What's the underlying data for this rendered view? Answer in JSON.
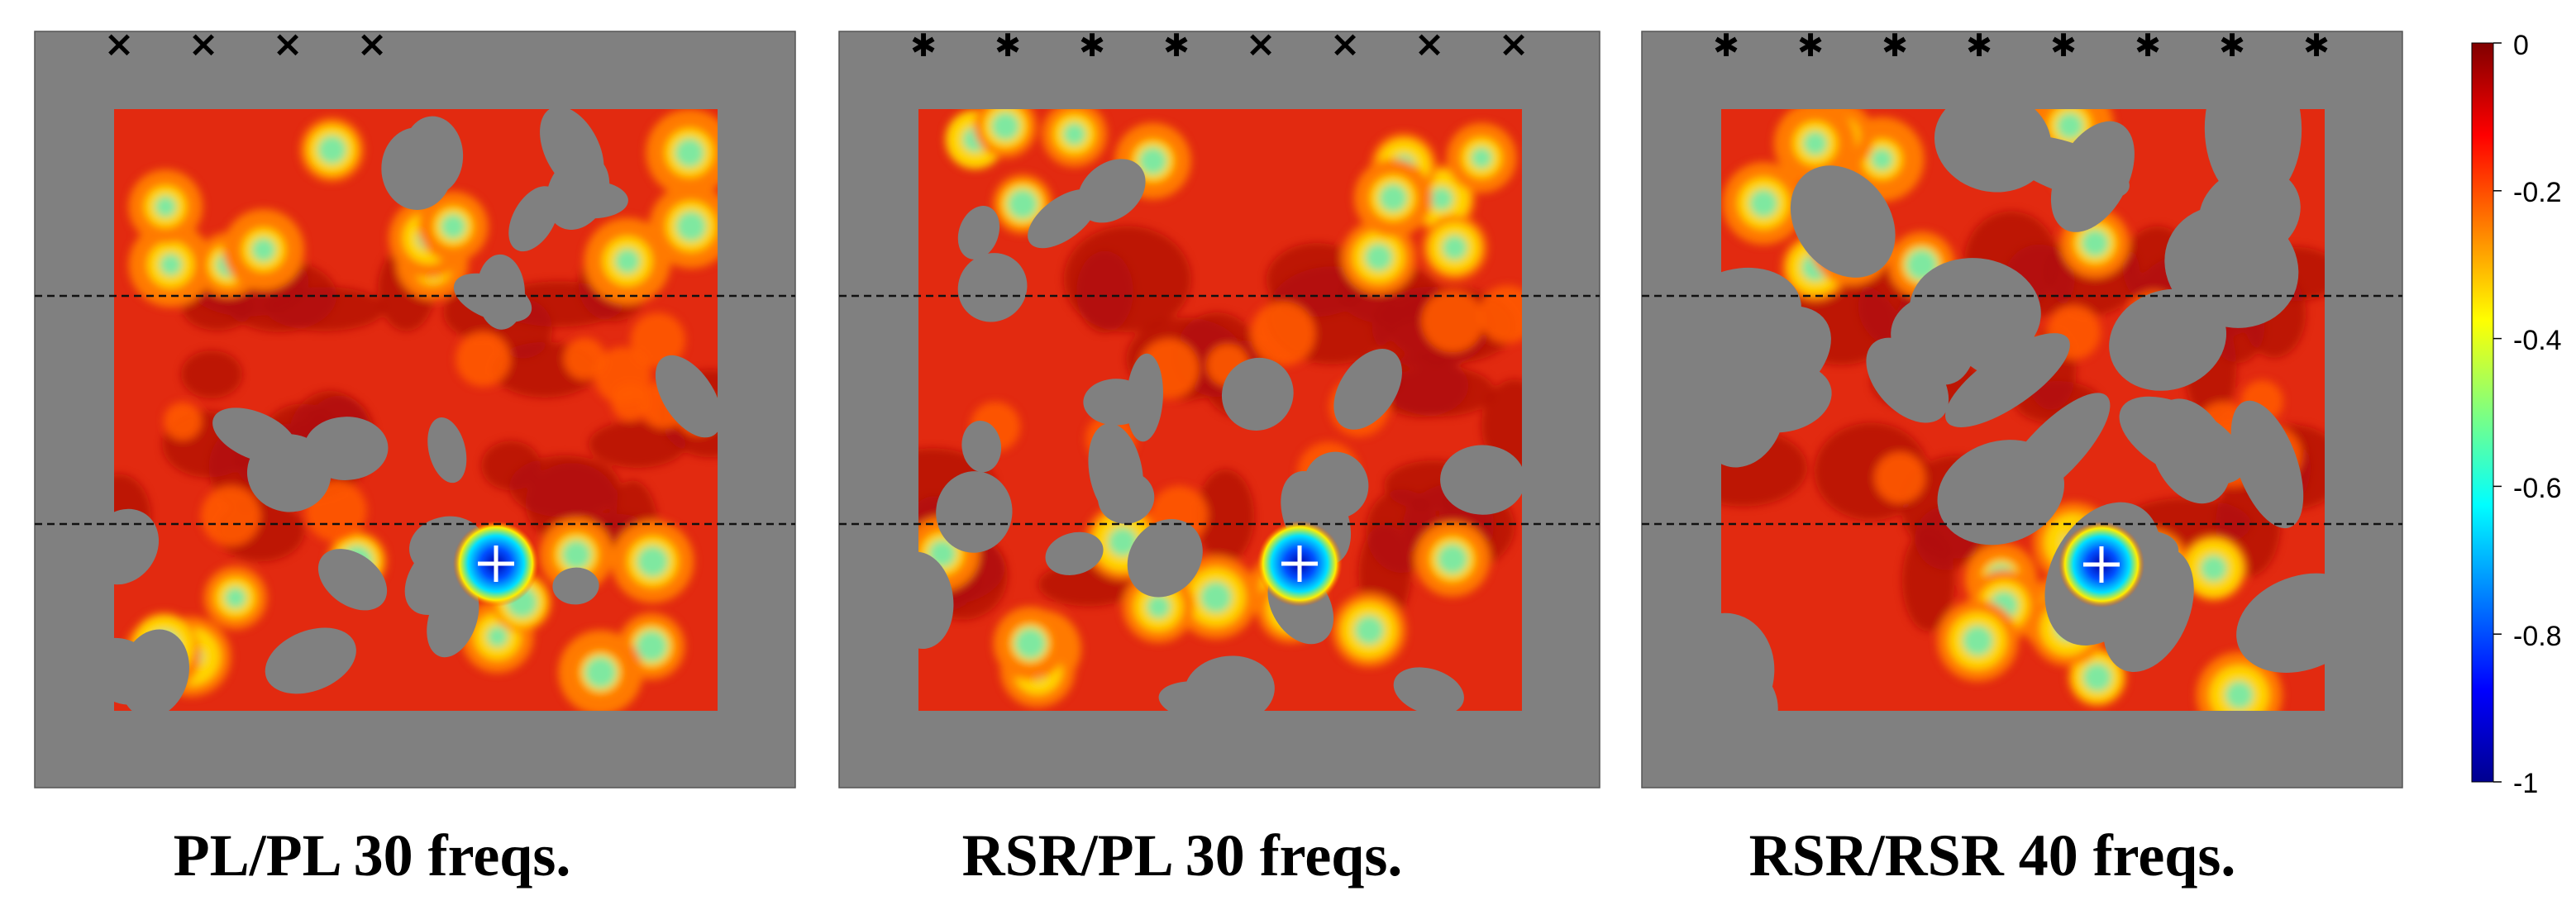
{
  "chart_data": {
    "type": "heatmap",
    "colormap": "jet",
    "background_color": "#808080",
    "clim": [
      -1,
      0
    ],
    "colorbar": {
      "placement": "right",
      "ticks": [
        0,
        -0.2,
        -0.4,
        -0.6,
        -0.8,
        -1
      ],
      "tick_labels": [
        "0",
        "-0.2",
        "-0.4",
        "-0.6",
        "-0.8",
        "-1"
      ]
    },
    "panels": [
      {
        "title": "PL/PL 30 freqs.",
        "marker_symbols": [
          "×",
          "×",
          "×",
          "×"
        ],
        "source_marker": "+",
        "source_value": -1
      },
      {
        "title": "RSR/PL 30 freqs.",
        "marker_symbols": [
          "✱",
          "✱",
          "✱",
          "✱",
          "×",
          "×",
          "×",
          "×"
        ],
        "source_marker": "+",
        "source_value": -1
      },
      {
        "title": "RSR/RSR 40 freqs.",
        "marker_symbols": [
          "✱",
          "✱",
          "✱",
          "✱",
          "✱",
          "✱",
          "✱",
          "✱"
        ],
        "source_marker": "+",
        "source_value": -1
      }
    ]
  }
}
